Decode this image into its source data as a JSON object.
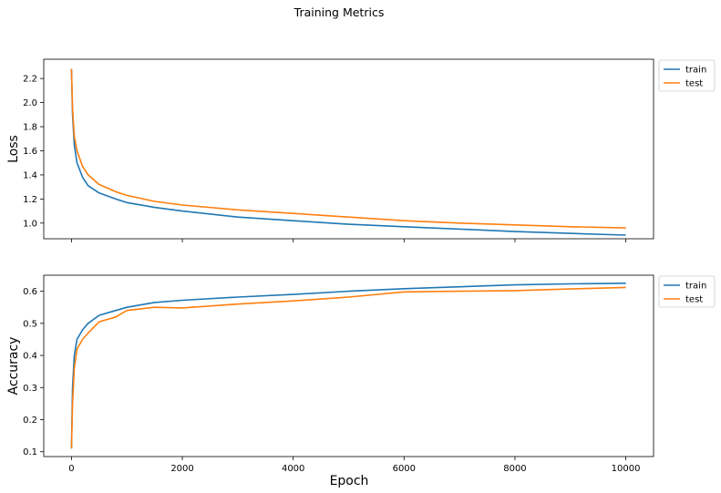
{
  "chart_data": {
    "title": "Training Metrics",
    "xlabel": "Epoch",
    "xlim": [
      -500,
      10500
    ],
    "xticks": [
      0,
      2000,
      4000,
      6000,
      8000,
      10000
    ],
    "colors": {
      "train": "#1f77b4",
      "test": "#ff7f0e"
    },
    "panels": [
      {
        "type": "line",
        "ylabel": "Loss",
        "ylim": [
          0.87,
          2.36
        ],
        "yticks": [
          "1.0",
          "1.2",
          "1.4",
          "1.6",
          "1.8",
          "2.0",
          "2.2"
        ],
        "legend": {
          "placement": "outside-upper-right",
          "entries": [
            "train",
            "test"
          ]
        },
        "series": [
          {
            "name": "train",
            "x": [
              0,
              20,
              50,
              100,
              200,
              300,
              500,
              800,
              1000,
              1500,
              2000,
              3000,
              4000,
              5000,
              6000,
              7000,
              8000,
              9000,
              10000
            ],
            "y": [
              2.28,
              1.9,
              1.65,
              1.5,
              1.38,
              1.31,
              1.25,
              1.2,
              1.17,
              1.13,
              1.1,
              1.05,
              1.02,
              0.99,
              0.97,
              0.95,
              0.93,
              0.915,
              0.9
            ]
          },
          {
            "name": "test",
            "x": [
              0,
              20,
              50,
              100,
              200,
              300,
              500,
              800,
              1000,
              1500,
              2000,
              3000,
              4000,
              5000,
              6000,
              7000,
              8000,
              9000,
              10000
            ],
            "y": [
              2.28,
              1.95,
              1.72,
              1.6,
              1.47,
              1.4,
              1.32,
              1.26,
              1.23,
              1.18,
              1.15,
              1.11,
              1.08,
              1.05,
              1.02,
              1.0,
              0.985,
              0.97,
              0.96
            ]
          }
        ]
      },
      {
        "type": "line",
        "ylabel": "Accuracy",
        "ylim": [
          0.085,
          0.65
        ],
        "yticks": [
          "0.1",
          "0.2",
          "0.3",
          "0.4",
          "0.5",
          "0.6"
        ],
        "legend": {
          "placement": "outside-upper-right",
          "entries": [
            "train",
            "test"
          ]
        },
        "series": [
          {
            "name": "train",
            "x": [
              0,
              20,
              50,
              100,
              200,
              300,
              500,
              800,
              1000,
              1500,
              2000,
              3000,
              4000,
              5000,
              6000,
              7000,
              8000,
              9000,
              10000
            ],
            "y": [
              0.11,
              0.3,
              0.4,
              0.45,
              0.48,
              0.5,
              0.525,
              0.54,
              0.55,
              0.565,
              0.572,
              0.582,
              0.59,
              0.6,
              0.608,
              0.614,
              0.62,
              0.623,
              0.625
            ]
          },
          {
            "name": "test",
            "x": [
              0,
              20,
              50,
              100,
              200,
              300,
              500,
              800,
              1000,
              1500,
              2000,
              3000,
              4000,
              5000,
              6000,
              7000,
              8000,
              9000,
              10000
            ],
            "y": [
              0.11,
              0.25,
              0.36,
              0.42,
              0.45,
              0.47,
              0.505,
              0.52,
              0.54,
              0.55,
              0.548,
              0.56,
              0.57,
              0.582,
              0.598,
              0.6,
              0.602,
              0.607,
              0.612
            ]
          }
        ]
      }
    ]
  }
}
